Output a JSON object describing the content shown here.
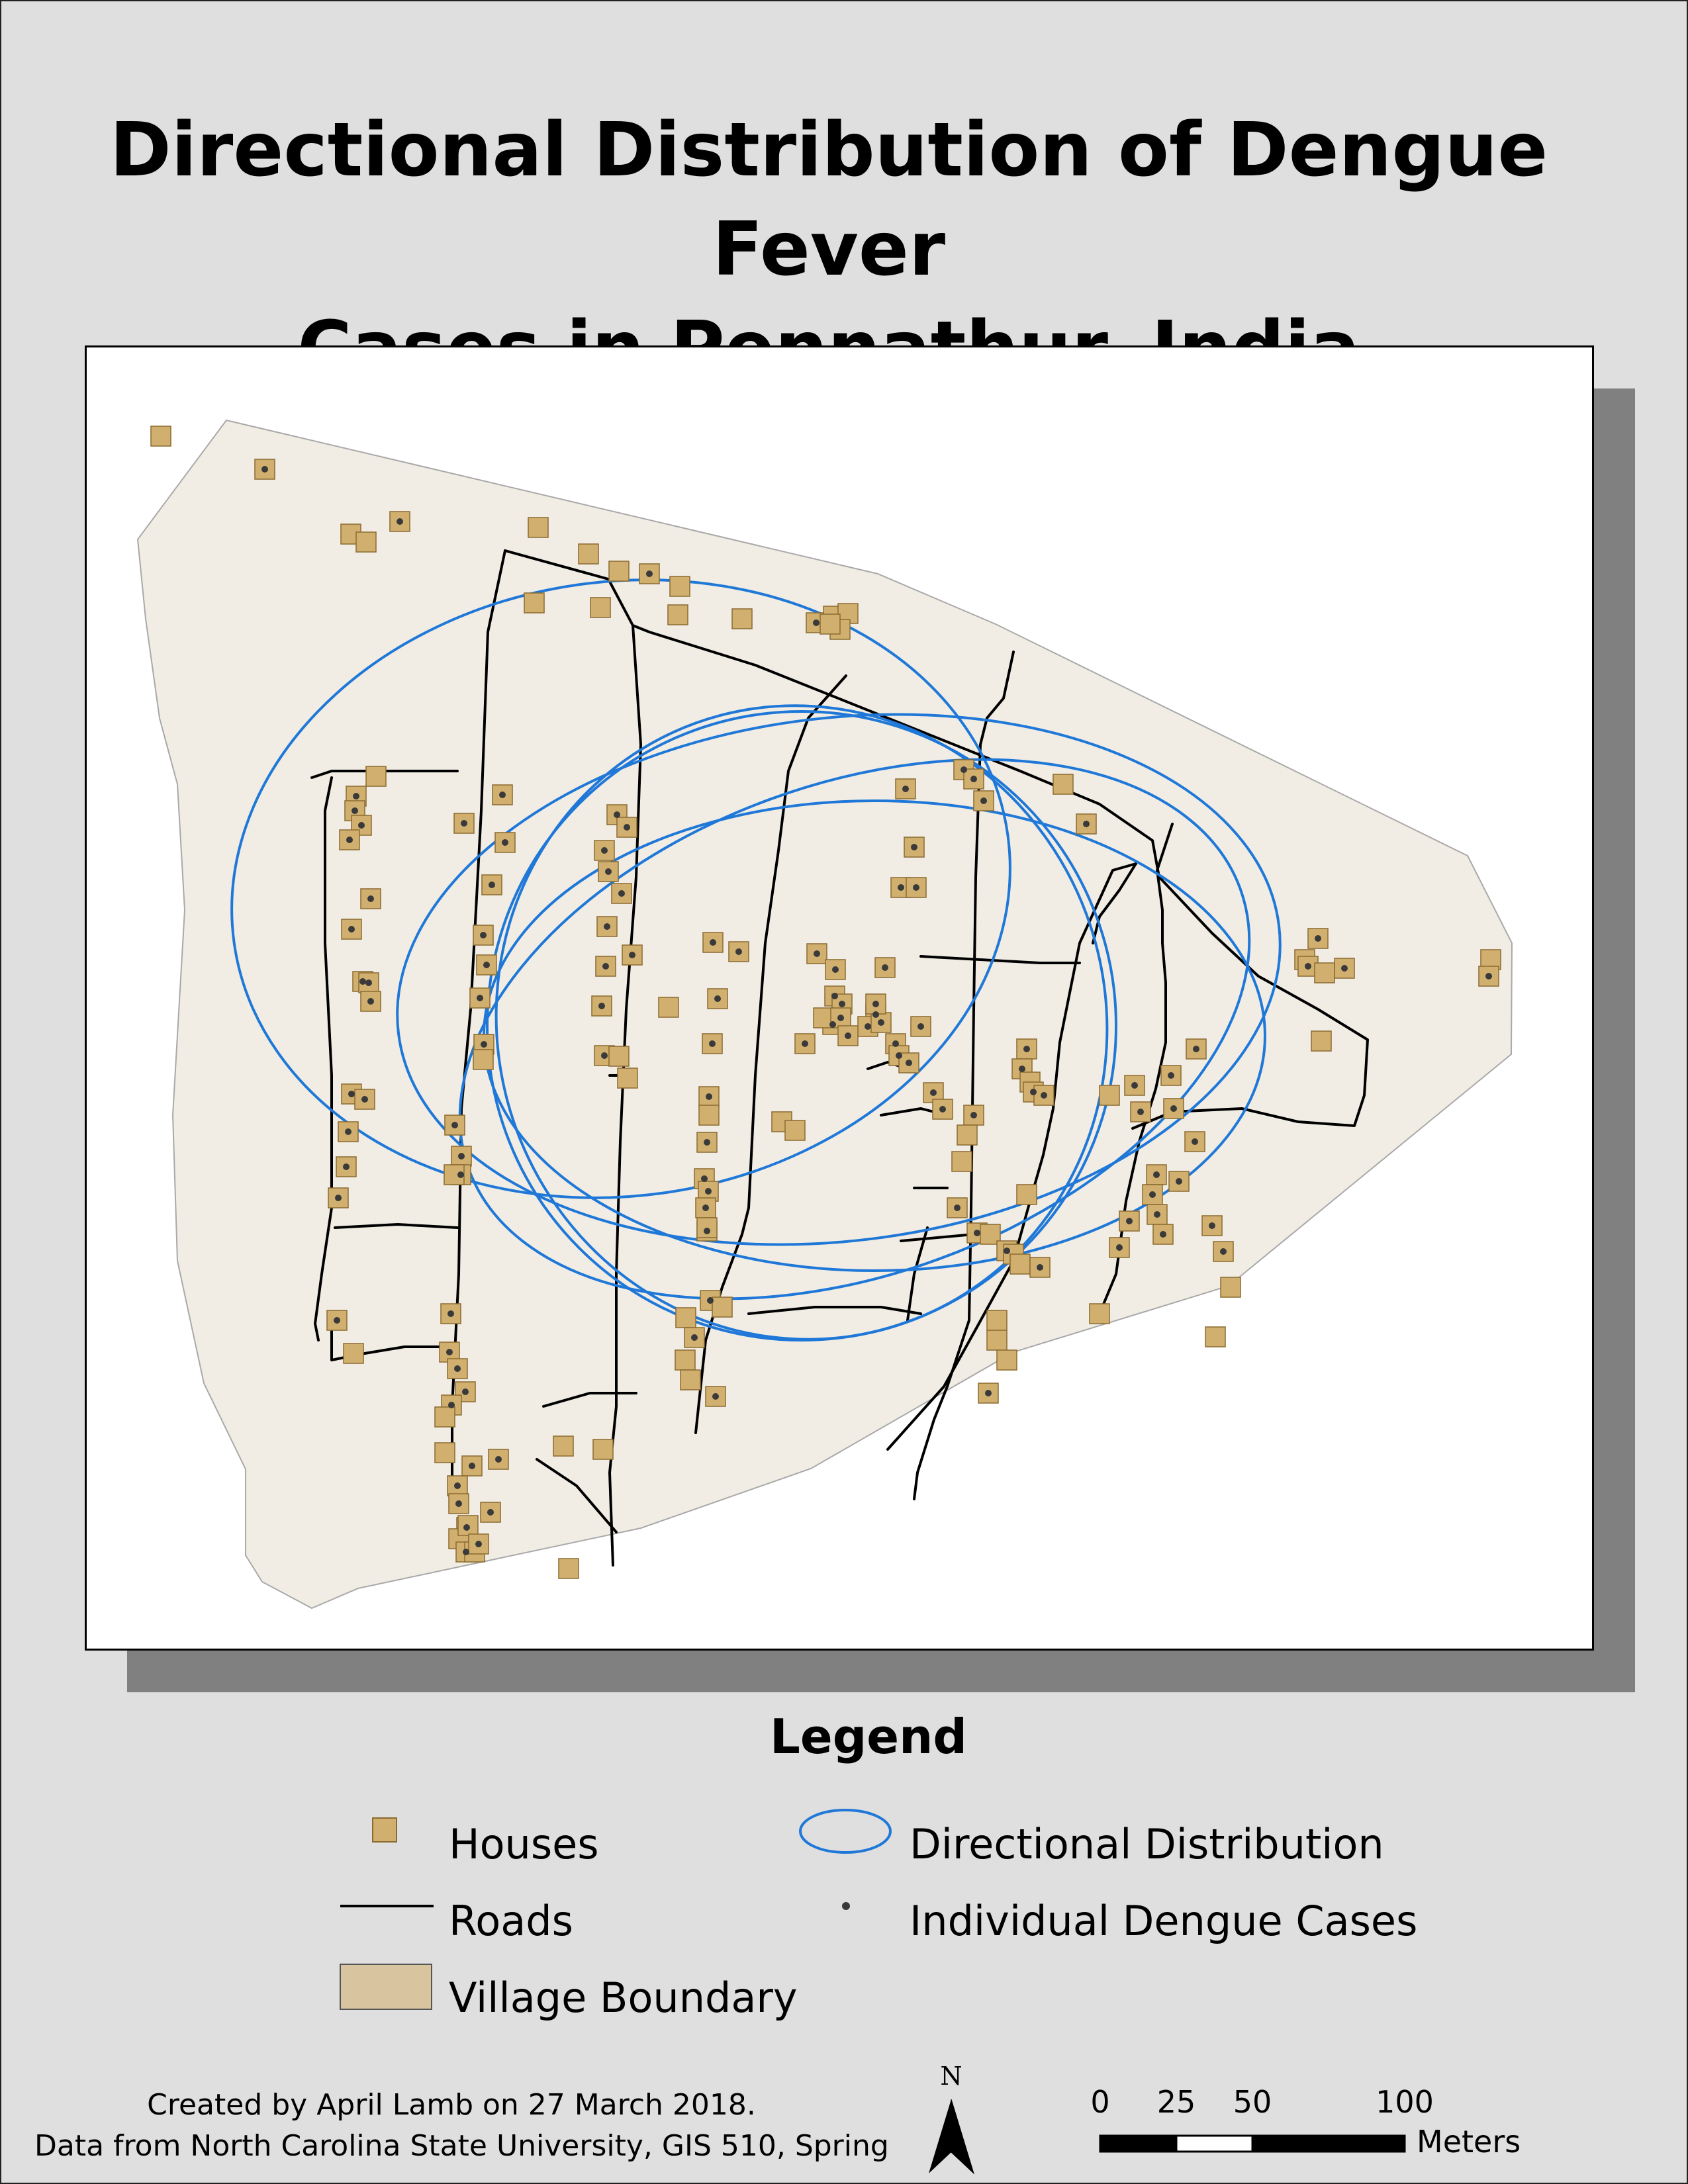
{
  "title_line1": "Directional Distribution of Dengue Fever",
  "title_line2": "Cases in Pennathur, India",
  "legend": {
    "title": "Legend",
    "houses": "Houses",
    "roads": "Roads",
    "village_boundary": "Village Boundary",
    "directional_distribution": "Directional Distribution",
    "individual_cases": "Individual Dengue Cases"
  },
  "credits": {
    "line1": "Created by April Lamb on 27 March 2018.",
    "line2": "Data from North Carolina State University, GIS 510, Spring"
  },
  "north_label": "N",
  "scale": {
    "labels": [
      "0",
      "25",
      "50",
      "100"
    ],
    "unit": "Meters"
  },
  "colors": {
    "page_background": "#dfdfdf",
    "village_fill": "#f1ede4",
    "house_fill": "#d1b06f",
    "house_stroke": "#8a6a30",
    "road": "#000000",
    "ellipse": "#1f78d8",
    "case_dot": "#3a3a3a",
    "legend_boundary_fill": "#d8c5a0"
  },
  "icons": [
    "north-arrow-icon"
  ]
}
